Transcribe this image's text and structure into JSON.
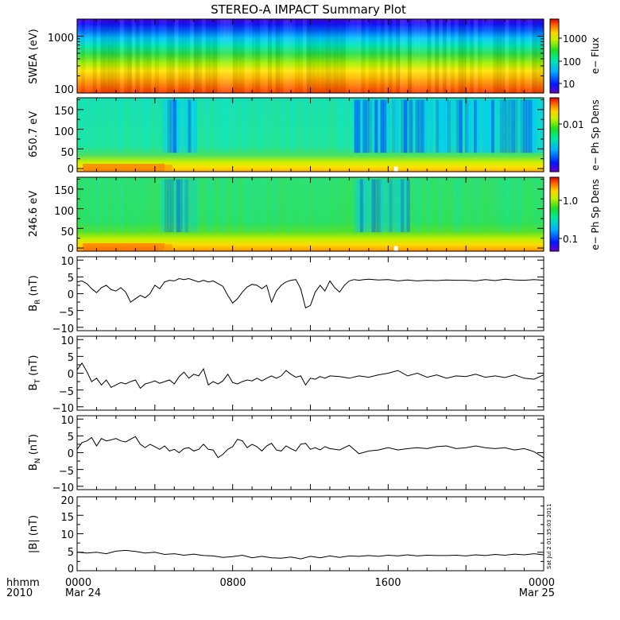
{
  "title": "STEREO-A IMPACT Summary Plot",
  "stamp": "Sat Jul  2 01:35:03 2011",
  "time_axis": {
    "row1_labels": [
      "0000",
      "0800",
      "1600",
      "0000"
    ],
    "row2_labels": [
      "Mar 24",
      "Mar 25"
    ],
    "corner_row1": "hhmm",
    "corner_row2": "2010",
    "range_hours": [
      0,
      24
    ]
  },
  "panels": [
    {
      "id": "swea",
      "ylabel": "SWEA (eV)",
      "yscale": "log",
      "ylim": [
        100,
        2000
      ],
      "ytick_labels": [
        "100",
        "1000"
      ],
      "colorbar_label": "e− Flux",
      "colorbar_ticks": [
        "10",
        "100",
        "1000"
      ]
    },
    {
      "id": "pad650",
      "ylabel": "650.7 eV",
      "yscale": "linear",
      "ylim": [
        -8,
        180
      ],
      "ytick_labels": [
        "0",
        "50",
        "100",
        "150"
      ],
      "colorbar_label": "e− Ph Sp Dens",
      "colorbar_ticks": [
        "0.01"
      ]
    },
    {
      "id": "pad246",
      "ylabel": "246.6 eV",
      "yscale": "linear",
      "ylim": [
        -8,
        180
      ],
      "ytick_labels": [
        "0",
        "50",
        "100",
        "150"
      ],
      "colorbar_label": "e− Ph Sp Dens",
      "colorbar_ticks": [
        "0.1",
        "1.0"
      ]
    },
    {
      "id": "br",
      "ylabel": "BR (nT)",
      "ylim": [
        -11,
        11
      ],
      "ytick_labels": [
        "−10",
        "−5",
        "0",
        "5",
        "10"
      ]
    },
    {
      "id": "bt",
      "ylabel": "BT (nT)",
      "ylim": [
        -11,
        11
      ],
      "ytick_labels": [
        "−10",
        "−5",
        "0",
        "5",
        "10"
      ]
    },
    {
      "id": "bn",
      "ylabel": "BN (nT)",
      "ylim": [
        -11,
        11
      ],
      "ytick_labels": [
        "−10",
        "−5",
        "0",
        "5",
        "10"
      ]
    },
    {
      "id": "bmag",
      "ylabel": "|B| (nT)",
      "ylim": [
        0,
        20
      ],
      "ytick_labels": [
        "0",
        "5",
        "10",
        "15",
        "20"
      ]
    }
  ],
  "chart_data": [
    {
      "type": "heatmap",
      "panel": "swea",
      "x_hours": [
        0,
        24
      ],
      "y_energy_eV": [
        100,
        2000
      ],
      "energy_profile": [
        {
          "energy": 100,
          "flux": 3000
        },
        {
          "energy": 200,
          "flux": 900
        },
        {
          "energy": 400,
          "flux": 200
        },
        {
          "energy": 700,
          "flux": 60
        },
        {
          "energy": 1000,
          "flux": 25
        },
        {
          "energy": 1500,
          "flux": 10
        },
        {
          "energy": 2000,
          "flux": 5
        }
      ]
    },
    {
      "type": "heatmap",
      "panel": "pad650",
      "x_hours": [
        0,
        24
      ],
      "y_pitch_deg": [
        0,
        180
      ],
      "depleted_intervals_hours": [
        [
          4.2,
          6.0
        ],
        [
          14.2,
          24.0
        ]
      ]
    },
    {
      "type": "heatmap",
      "panel": "pad246",
      "x_hours": [
        0,
        24
      ],
      "y_pitch_deg": [
        0,
        180
      ],
      "depleted_intervals_hours": [
        [
          4.2,
          6.0
        ],
        [
          14.2,
          17.0
        ]
      ]
    },
    {
      "type": "line",
      "panel": "br",
      "x": [
        0,
        0.25,
        0.5,
        0.75,
        1,
        1.25,
        1.5,
        1.75,
        2,
        2.25,
        2.5,
        2.75,
        3,
        3.25,
        3.5,
        3.75,
        4,
        4.25,
        4.5,
        4.75,
        5,
        5.25,
        5.5,
        5.75,
        6,
        6.25,
        6.5,
        6.75,
        7,
        7.25,
        7.5,
        7.75,
        8,
        8.25,
        8.5,
        8.75,
        9,
        9.25,
        9.5,
        9.75,
        10,
        10.25,
        10.5,
        10.75,
        11,
        11.25,
        11.5,
        11.75,
        12,
        12.25,
        12.5,
        12.75,
        13,
        13.25,
        13.5,
        13.75,
        14,
        14.25,
        14.5,
        14.75,
        15,
        15.5,
        16,
        16.5,
        17,
        17.5,
        18,
        18.5,
        19,
        19.5,
        20,
        20.5,
        21,
        21.5,
        22,
        22.5,
        23,
        23.5,
        24
      ],
      "y": [
        3.5,
        3.8,
        3,
        1.5,
        0.3,
        1.8,
        2.5,
        1.2,
        0.8,
        1.8,
        0.5,
        -2.5,
        -1.5,
        -0.5,
        -1.2,
        0,
        2.5,
        1.5,
        3.5,
        4,
        3.8,
        4.5,
        4.2,
        4.5,
        4,
        3.5,
        4,
        3.5,
        3.8,
        3,
        2.2,
        -0.5,
        -2.8,
        -1.5,
        0.5,
        2,
        2.8,
        2.5,
        1.5,
        2.5,
        -2.5,
        0.8,
        2.5,
        3.5,
        4,
        4.2,
        1.5,
        -4.2,
        -3.5,
        0.5,
        2.5,
        0.8,
        3.8,
        1.8,
        0.5,
        2.5,
        3.8,
        4.2,
        4,
        4.2,
        4.3,
        4.1,
        4.2,
        3.8,
        4.1,
        3.8,
        4,
        3.9,
        4.1,
        4,
        4,
        3.8,
        4.2,
        3.9,
        4.3,
        4.1,
        4,
        4.2,
        4
      ]
    },
    {
      "type": "line",
      "panel": "bt",
      "x": [
        0,
        0.25,
        0.5,
        0.75,
        1,
        1.25,
        1.5,
        1.75,
        2,
        2.25,
        2.5,
        2.75,
        3,
        3.25,
        3.5,
        3.75,
        4,
        4.25,
        4.5,
        4.75,
        5,
        5.25,
        5.5,
        5.75,
        6,
        6.25,
        6.5,
        6.75,
        7,
        7.25,
        7.5,
        7.75,
        8,
        8.25,
        8.5,
        8.75,
        9,
        9.25,
        9.5,
        9.75,
        10,
        10.25,
        10.5,
        10.75,
        11,
        11.25,
        11.5,
        11.75,
        12,
        12.25,
        12.5,
        12.75,
        13,
        13.5,
        14,
        14.5,
        15,
        15.5,
        16,
        16.5,
        17,
        17.5,
        18,
        18.5,
        19,
        19.5,
        20,
        20.5,
        21,
        21.5,
        22,
        22.5,
        23,
        23.5,
        24
      ],
      "y": [
        1,
        3,
        0.5,
        -2.5,
        -1.5,
        -3.5,
        -2,
        -4.2,
        -3.5,
        -2.8,
        -3.2,
        -2.5,
        -2,
        -4.5,
        -3.2,
        -2.8,
        -2.3,
        -3,
        -2.5,
        -2,
        -3.2,
        -1,
        0.3,
        -1.5,
        -0.3,
        -0.8,
        1.3,
        -3.5,
        -2.5,
        -3.2,
        -2.3,
        -0.3,
        -2.8,
        -3.2,
        -2.5,
        -2,
        -2.3,
        -1.5,
        -2.3,
        -1.5,
        -0.8,
        -1.5,
        -0.8,
        0.8,
        -0.3,
        -1.2,
        -0.8,
        -3.5,
        -1.5,
        -1.8,
        -1,
        -1.5,
        -0.8,
        -1,
        -1.5,
        -0.8,
        -1.2,
        -0.5,
        0,
        0.8,
        -0.8,
        0,
        -1.2,
        -0.5,
        -1.5,
        -0.8,
        -1,
        -0.3,
        -1.2,
        -0.8,
        -1.3,
        -0.5,
        -1.5,
        -1.8,
        -0.5
      ]
    },
    {
      "type": "line",
      "panel": "bn",
      "x": [
        0,
        0.25,
        0.5,
        0.75,
        1,
        1.25,
        1.5,
        1.75,
        2,
        2.25,
        2.5,
        2.75,
        3,
        3.25,
        3.5,
        3.75,
        4,
        4.25,
        4.5,
        4.75,
        5,
        5.25,
        5.5,
        5.75,
        6,
        6.25,
        6.5,
        6.75,
        7,
        7.25,
        7.5,
        7.75,
        8,
        8.25,
        8.5,
        8.75,
        9,
        9.25,
        9.5,
        9.75,
        10,
        10.25,
        10.5,
        10.75,
        11,
        11.25,
        11.5,
        11.75,
        12,
        12.25,
        12.5,
        12.75,
        13,
        13.5,
        14,
        14.5,
        15,
        15.5,
        16,
        16.5,
        17,
        17.5,
        18,
        18.5,
        19,
        19.5,
        20,
        20.5,
        21,
        21.5,
        22,
        22.5,
        23,
        23.5,
        24
      ],
      "y": [
        1,
        3,
        3.5,
        4.5,
        2,
        4.2,
        3.5,
        3.8,
        4.2,
        3.5,
        3.2,
        4,
        4.8,
        2.5,
        1.5,
        2.5,
        1.8,
        1,
        2,
        0.5,
        1,
        0,
        1.2,
        1.5,
        0.5,
        1,
        2.5,
        1,
        0.8,
        -1.5,
        -0.5,
        1,
        1.8,
        4,
        3.5,
        1.5,
        2.5,
        1.8,
        0.5,
        2,
        2.8,
        0.8,
        0.5,
        2,
        1.2,
        0.5,
        2.5,
        2.8,
        1,
        1.5,
        0.8,
        1.8,
        1.2,
        0.8,
        2.2,
        -0.3,
        0.5,
        0.8,
        1.5,
        0.8,
        1.2,
        1.5,
        1.2,
        1.8,
        2,
        1.2,
        1.5,
        2,
        1.5,
        1.2,
        1.5,
        0.8,
        1.2,
        0.3,
        -1.5
      ]
    },
    {
      "type": "line",
      "panel": "bmag",
      "x": [
        0,
        0.5,
        1,
        1.5,
        2,
        2.5,
        3,
        3.5,
        4,
        4.5,
        5,
        5.5,
        6,
        6.5,
        7,
        7.5,
        8,
        8.5,
        9,
        9.5,
        10,
        10.5,
        11,
        11.5,
        12,
        12.5,
        13,
        13.5,
        14,
        14.5,
        15,
        15.5,
        16,
        16.5,
        17,
        17.5,
        18,
        18.5,
        19,
        19.5,
        20,
        20.5,
        21,
        21.5,
        22,
        22.5,
        23,
        23.5,
        24
      ],
      "y": [
        5,
        4.8,
        5,
        4.6,
        5.3,
        5.5,
        5.2,
        4.8,
        5,
        4.4,
        4.6,
        4.2,
        4.5,
        4.1,
        4,
        3.6,
        3.8,
        4.2,
        3.5,
        3.9,
        3.5,
        3.4,
        3.7,
        3.2,
        3.9,
        3.5,
        4,
        3.6,
        4,
        3.9,
        4.1,
        3.9,
        4.2,
        4,
        4.3,
        4,
        4.2,
        4.1,
        4.1,
        4.2,
        4,
        4.3,
        4.1,
        4.4,
        4.2,
        4.5,
        4.3,
        4.6,
        4.3
      ]
    }
  ]
}
